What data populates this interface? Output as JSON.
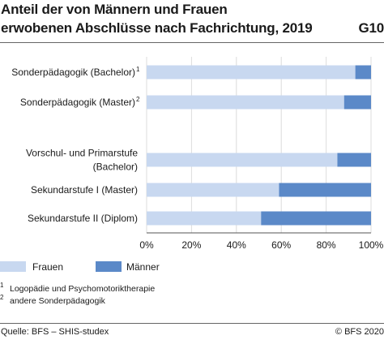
{
  "title": {
    "line1": "Anteil der von Männern und Frauen",
    "line2": "erwobenen Abschlüsse nach Fachrichtung, 2019",
    "code": "G10"
  },
  "chart_data": {
    "type": "bar",
    "orientation": "horizontal",
    "stacked": "percent",
    "categories": [
      {
        "lines": [
          "Sonderpädagogik (Bachelor)"
        ],
        "sup": "1"
      },
      {
        "lines": [
          "Sonderpädagogik (Master)"
        ],
        "sup": "2"
      },
      {
        "lines": [
          "Vorschul- und Primarstufe",
          "(Bachelor)"
        ],
        "sup": ""
      },
      {
        "lines": [
          "Sekundarstufe I (Master)"
        ],
        "sup": ""
      },
      {
        "lines": [
          "Sekundarstufe II (Diplom)"
        ],
        "sup": ""
      }
    ],
    "series": [
      {
        "name": "Frauen",
        "color": "#c8d8f0",
        "values": [
          93,
          88,
          85,
          59,
          51
        ]
      },
      {
        "name": "Männer",
        "color": "#5b89c8",
        "values": [
          7,
          12,
          15,
          41,
          49
        ]
      }
    ],
    "xlim": [
      0,
      100
    ],
    "xticks": [
      "0%",
      "20%",
      "40%",
      "60%",
      "80%",
      "100%"
    ],
    "grid": true,
    "legend": "bottom"
  },
  "footnotes": [
    {
      "mark": "1",
      "text": "Logopädie und Psychomotoriktherapie"
    },
    {
      "mark": "2",
      "text": "andere Sonderpädagogik"
    }
  ],
  "footer": {
    "source": "Quelle: BFS – SHIS-studex",
    "copyright": "© BFS 2020"
  }
}
